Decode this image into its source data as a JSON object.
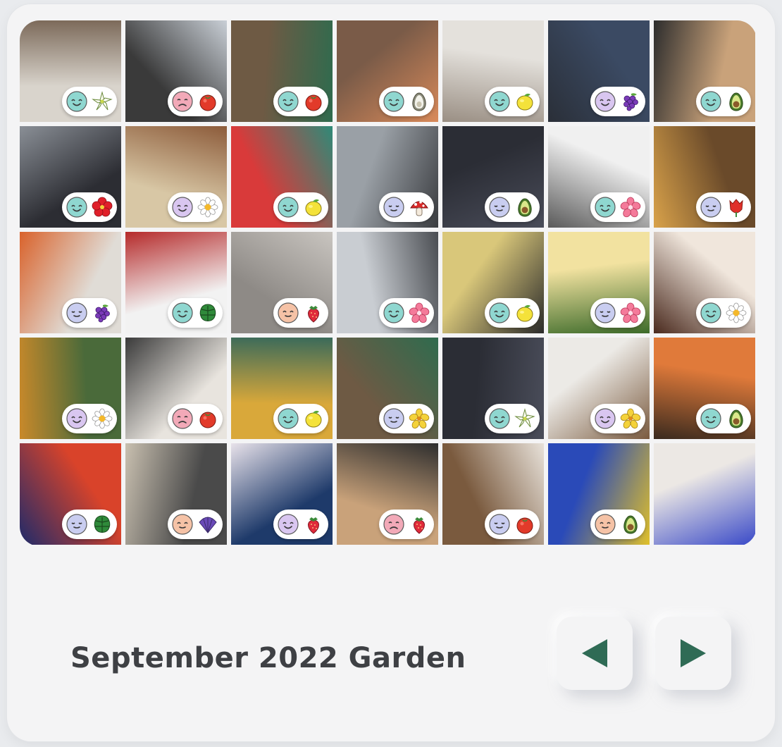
{
  "garden": {
    "title": "September 2022 Garden",
    "month": "September",
    "year": "2022"
  },
  "navigation": {
    "prev_icon": "triangle-left-icon",
    "next_icon": "triangle-right-icon",
    "accent_color": "#2f6b55"
  },
  "mood_colors": {
    "happy": "#8fd7d0",
    "calm": "#c9cdf0",
    "content": "#d9c6f0",
    "sad": "#f2a9b8",
    "neutral": "#f5c2a6"
  },
  "tiles": [
    {
      "photo": "living-room",
      "bg": [
        "#d9d4cc",
        "#7c6a5a"
      ],
      "mood": "happy",
      "plant": "lily-flower"
    },
    {
      "photo": "person-doorway",
      "bg": [
        "#3a3a3a",
        "#c9cfd6"
      ],
      "mood": "sad",
      "plant": "tomato"
    },
    {
      "photo": "drinks-table",
      "bg": [
        "#6e5a44",
        "#2f6b4e"
      ],
      "mood": "happy",
      "plant": "tomato"
    },
    {
      "photo": "shrimp-dish",
      "bg": [
        "#7a5b48",
        "#d98a5a"
      ],
      "mood": "happy",
      "plant": "avocado-seed"
    },
    {
      "photo": "apartment-kitchen",
      "bg": [
        "#e4e1dc",
        "#9a8f84"
      ],
      "mood": "happy",
      "plant": "lemon"
    },
    {
      "photo": "woman-portrait",
      "bg": [
        "#3b4a63",
        "#2a2f38"
      ],
      "mood": "content",
      "plant": "grapes"
    },
    {
      "photo": "starbucks-cup",
      "bg": [
        "#c9a27a",
        "#2d2d2d"
      ],
      "mood": "happy",
      "plant": "avocado"
    },
    {
      "photo": "cap-and-glasses",
      "bg": [
        "#2c2d33",
        "#8a8f96"
      ],
      "mood": "happy",
      "plant": "hibiscus"
    },
    {
      "photo": "clam-pasta",
      "bg": [
        "#d8c7a5",
        "#8c5b3a"
      ],
      "mood": "content",
      "plant": "daisy"
    },
    {
      "photo": "abstract-mural",
      "bg": [
        "#d93a3a",
        "#2f8a78"
      ],
      "mood": "happy",
      "plant": "lemon"
    },
    {
      "photo": "person-sitting",
      "bg": [
        "#9aa0a6",
        "#3a3c40"
      ],
      "mood": "calm",
      "plant": "mushroom"
    },
    {
      "photo": "adidas-bag",
      "bg": [
        "#2b2d35",
        "#4a4d5a"
      ],
      "mood": "calm",
      "plant": "avocado"
    },
    {
      "photo": "figure-art",
      "bg": [
        "#f0f0f0",
        "#5a5a5a"
      ],
      "mood": "happy",
      "plant": "sakura"
    },
    {
      "photo": "burger-meal",
      "bg": [
        "#6a4a2a",
        "#d9a24a"
      ],
      "mood": "calm",
      "plant": "tulip"
    },
    {
      "photo": "painting-stairs",
      "bg": [
        "#e0dcd6",
        "#d9622b"
      ],
      "mood": "calm",
      "plant": "grapes"
    },
    {
      "photo": "clothes-rack",
      "bg": [
        "#f2f2f2",
        "#b52a2a"
      ],
      "mood": "happy",
      "plant": "monstera"
    },
    {
      "photo": "clock-table",
      "bg": [
        "#8e8a86",
        "#c9c5c0"
      ],
      "mood": "neutral",
      "plant": "strawberry"
    },
    {
      "photo": "person-mirror",
      "bg": [
        "#c9cdd2",
        "#4a4d52"
      ],
      "mood": "happy",
      "plant": "sakura"
    },
    {
      "photo": "comic-art",
      "bg": [
        "#d9c77a",
        "#2a2a2a"
      ],
      "mood": "happy",
      "plant": "lemon"
    },
    {
      "photo": "omelette-plate",
      "bg": [
        "#f2e2a0",
        "#3d6b2a"
      ],
      "mood": "calm",
      "plant": "sakura"
    },
    {
      "photo": "steak-dinner",
      "bg": [
        "#f0e6dc",
        "#4a2a1e"
      ],
      "mood": "happy",
      "plant": "daisy"
    },
    {
      "photo": "man-smiling",
      "bg": [
        "#4a6a3a",
        "#c9892a"
      ],
      "mood": "content",
      "plant": "daisy"
    },
    {
      "photo": "graffiti-art",
      "bg": [
        "#e8e4de",
        "#3a3a3a"
      ],
      "mood": "sad",
      "plant": "tomato"
    },
    {
      "photo": "curry-feast",
      "bg": [
        "#d9a83a",
        "#3a6a5a"
      ],
      "mood": "happy",
      "plant": "lemon"
    },
    {
      "photo": "drinks-table-2",
      "bg": [
        "#6e5a44",
        "#2f6b4e"
      ],
      "mood": "calm",
      "plant": "yellow-flower"
    },
    {
      "photo": "adidas-bag-2",
      "bg": [
        "#2b2d35",
        "#4a4d5a"
      ],
      "mood": "happy",
      "plant": "lily-flower"
    },
    {
      "photo": "tv-room",
      "bg": [
        "#eceae6",
        "#7a5a3e"
      ],
      "mood": "content",
      "plant": "yellow-flower"
    },
    {
      "photo": "sushi-ramen",
      "bg": [
        "#e07a3a",
        "#3a2a1e"
      ],
      "mood": "happy",
      "plant": "avocado"
    },
    {
      "photo": "neon-portrait",
      "bg": [
        "#d9432a",
        "#1e2a6a"
      ],
      "mood": "calm",
      "plant": "monstera"
    },
    {
      "photo": "person-store",
      "bg": [
        "#4a4a4a",
        "#c9c0b0"
      ],
      "mood": "neutral",
      "plant": "shell"
    },
    {
      "photo": "city-night",
      "bg": [
        "#1e3a6a",
        "#e8e2ea"
      ],
      "mood": "content",
      "plant": "strawberry"
    },
    {
      "photo": "starbucks-cup-2",
      "bg": [
        "#c9a27a",
        "#2d2d2d"
      ],
      "mood": "sad",
      "plant": "strawberry"
    },
    {
      "photo": "cafe-reading",
      "bg": [
        "#7a5a3e",
        "#e8e2da"
      ],
      "mood": "calm",
      "plant": "tomato"
    },
    {
      "photo": "street-mural",
      "bg": [
        "#2a4ab8",
        "#e0c02a"
      ],
      "mood": "neutral",
      "plant": "avocado"
    },
    {
      "photo": "gallery-painting",
      "bg": [
        "#ece8e4",
        "#3a4ac8"
      ],
      "mood": null,
      "plant": null
    }
  ]
}
